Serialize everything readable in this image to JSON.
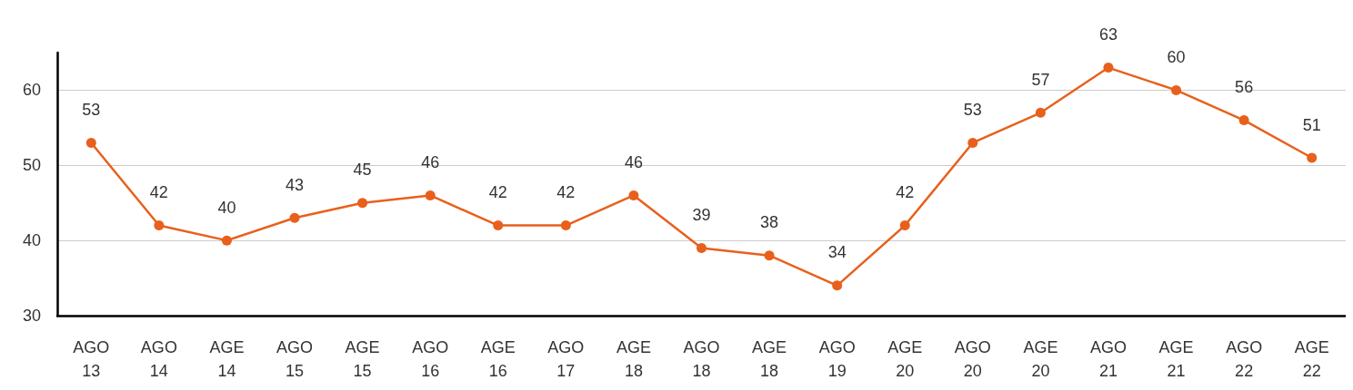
{
  "chart_data": {
    "type": "line",
    "categories": [
      "AGO\n13",
      "AGO\n14",
      "AGE\n14",
      "AGO\n15",
      "AGE\n15",
      "AGO\n16",
      "AGE\n16",
      "AGO\n17",
      "AGE\n18",
      "AGO\n18",
      "AGE\n18",
      "AGO\n19",
      "AGE\n20",
      "AGO\n20",
      "AGE\n20",
      "AGO\n21",
      "AGE\n21",
      "AGO\n22",
      "AGE\n22"
    ],
    "series": [
      {
        "color": "#e8601c",
        "values": [
          53,
          42,
          40,
          43,
          45,
          46,
          42,
          42,
          46,
          39,
          38,
          34,
          42,
          53,
          57,
          63,
          60,
          56,
          51
        ]
      }
    ],
    "ylim": [
      30,
      65
    ],
    "yticks": [
      30,
      40,
      50,
      60
    ],
    "grid": "y",
    "data_labels": true,
    "marker": "circle",
    "line_style": "solid"
  }
}
